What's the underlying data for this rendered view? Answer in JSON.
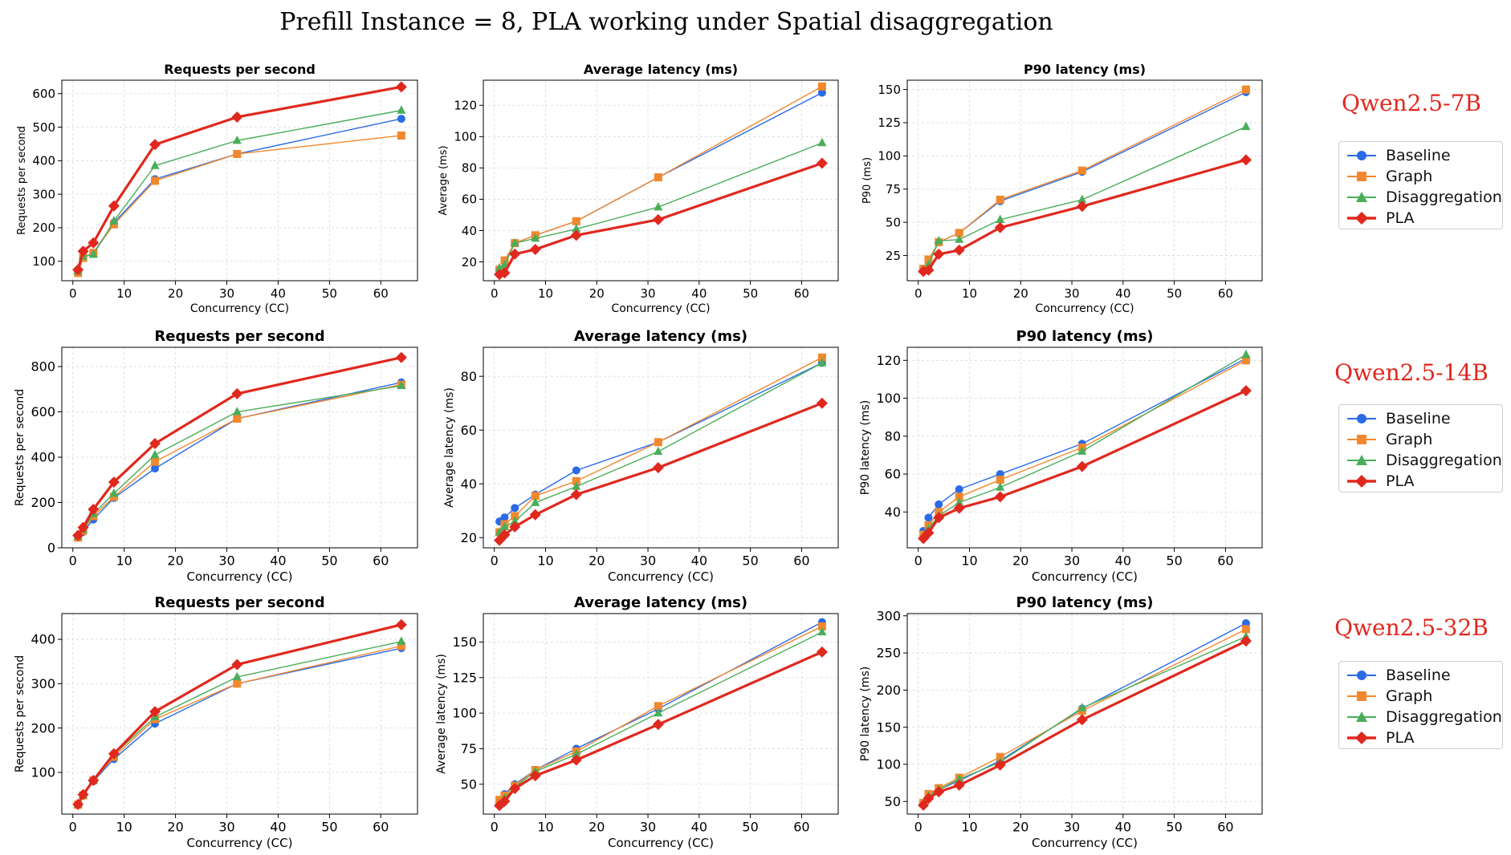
{
  "figure_title": "Prefill Instance = 8, PLA working under Spatial disaggregation",
  "colors": {
    "Baseline": "#2a6be6",
    "Graph": "#f2882e",
    "Disaggregation": "#4aad5a",
    "PLA": "#e0281e"
  },
  "legend": [
    "Baseline",
    "Graph",
    "Disaggregation",
    "PLA"
  ],
  "rows": [
    {
      "model": "Qwen2.5-7B"
    },
    {
      "model": "Qwen2.5-14B"
    },
    {
      "model": "Qwen2.5-32B"
    }
  ],
  "chart_data": [
    {
      "id": "r0c0",
      "type": "line",
      "title": "Requests per second",
      "xlabel": "Concurrency (CC)",
      "ylabel": "Requests per second",
      "x": [
        1,
        2,
        4,
        8,
        16,
        32,
        64
      ],
      "xlim": [
        -2.15,
        67.15
      ],
      "ylim": [
        42,
        640
      ],
      "xticks": [
        0,
        10,
        20,
        30,
        40,
        50,
        60
      ],
      "yticks": [
        100,
        200,
        300,
        400,
        500,
        600
      ],
      "series": [
        {
          "name": "Baseline",
          "values": [
            65,
            110,
            125,
            215,
            345,
            420,
            525
          ]
        },
        {
          "name": "Graph",
          "values": [
            65,
            110,
            125,
            210,
            340,
            420,
            475
          ]
        },
        {
          "name": "Disaggregation",
          "values": [
            70,
            115,
            120,
            220,
            385,
            460,
            550
          ]
        },
        {
          "name": "PLA",
          "values": [
            75,
            130,
            155,
            265,
            448,
            530,
            620
          ]
        }
      ]
    },
    {
      "id": "r0c1",
      "type": "line",
      "title": "Average latency (ms)",
      "xlabel": "Concurrency (CC)",
      "ylabel": "Average (ms)",
      "x": [
        1,
        2,
        4,
        8,
        16,
        32,
        64
      ],
      "xlim": [
        -2.15,
        67.15
      ],
      "ylim": [
        8,
        136
      ],
      "xticks": [
        0,
        10,
        20,
        30,
        40,
        50,
        60
      ],
      "yticks": [
        20,
        40,
        60,
        80,
        100,
        120
      ],
      "series": [
        {
          "name": "Baseline",
          "values": [
            15,
            20,
            32,
            37,
            46,
            74,
            128
          ]
        },
        {
          "name": "Graph",
          "values": [
            15,
            21,
            32,
            37,
            46,
            74,
            132
          ]
        },
        {
          "name": "Disaggregation",
          "values": [
            16,
            18,
            32,
            35,
            41,
            55,
            96
          ]
        },
        {
          "name": "PLA",
          "values": [
            12,
            13,
            25,
            28,
            37,
            47,
            83
          ]
        }
      ]
    },
    {
      "id": "r0c2",
      "type": "line",
      "title": "P90 latency (ms)",
      "xlabel": "Concurrency (CC)",
      "ylabel": "P90 (ms)",
      "x": [
        1,
        2,
        4,
        8,
        16,
        32,
        64
      ],
      "xlim": [
        -2.15,
        67.15
      ],
      "ylim": [
        6,
        157
      ],
      "xticks": [
        0,
        10,
        20,
        30,
        40,
        50,
        60
      ],
      "yticks": [
        25,
        50,
        75,
        100,
        125,
        150
      ],
      "series": [
        {
          "name": "Baseline",
          "values": [
            15,
            20,
            35,
            42,
            66,
            88,
            148
          ]
        },
        {
          "name": "Graph",
          "values": [
            15,
            22,
            35,
            42,
            67,
            89,
            150
          ]
        },
        {
          "name": "Disaggregation",
          "values": [
            14,
            18,
            36,
            37,
            52,
            67,
            122
          ]
        },
        {
          "name": "PLA",
          "values": [
            13,
            14,
            26,
            29,
            46,
            62,
            97
          ]
        }
      ]
    },
    {
      "id": "r1c0",
      "type": "line",
      "title": "Requests per second",
      "xlabel": "Concurrency (CC)",
      "ylabel": "Requests per second",
      "x": [
        1,
        2,
        4,
        8,
        16,
        32,
        64
      ],
      "xlim": [
        -2.15,
        67.15
      ],
      "ylim": [
        0,
        885
      ],
      "xticks": [
        0,
        10,
        20,
        30,
        40,
        50,
        60
      ],
      "yticks": [
        0,
        200,
        400,
        600,
        800
      ],
      "series": [
        {
          "name": "Baseline",
          "values": [
            45,
            70,
            125,
            220,
            350,
            570,
            730
          ]
        },
        {
          "name": "Graph",
          "values": [
            45,
            75,
            140,
            225,
            380,
            570,
            720
          ]
        },
        {
          "name": "Disaggregation",
          "values": [
            50,
            80,
            150,
            240,
            410,
            600,
            715
          ]
        },
        {
          "name": "PLA",
          "values": [
            55,
            90,
            170,
            290,
            460,
            680,
            840
          ]
        }
      ]
    },
    {
      "id": "r1c1",
      "type": "line",
      "title": "Average latency (ms)",
      "xlabel": "Concurrency (CC)",
      "ylabel": "Average latency (ms)",
      "x": [
        1,
        2,
        4,
        8,
        16,
        32,
        64
      ],
      "xlim": [
        -2.15,
        67.15
      ],
      "ylim": [
        16.2,
        90.8
      ],
      "xticks": [
        0,
        10,
        20,
        30,
        40,
        50,
        60
      ],
      "yticks": [
        20,
        40,
        60,
        80
      ],
      "series": [
        {
          "name": "Baseline",
          "values": [
            26,
            27.5,
            31,
            36,
            45,
            55.5,
            85
          ]
        },
        {
          "name": "Graph",
          "values": [
            22,
            25,
            28,
            35.5,
            41,
            55.5,
            87
          ]
        },
        {
          "name": "Disaggregation",
          "values": [
            22,
            24,
            26,
            33,
            39,
            52,
            85
          ]
        },
        {
          "name": "PLA",
          "values": [
            19,
            21,
            24,
            28.5,
            36,
            46,
            70
          ]
        }
      ]
    },
    {
      "id": "r1c2",
      "type": "line",
      "title": "P90 latency (ms)",
      "xlabel": "Concurrency (CC)",
      "ylabel": "P90 latency (ms)",
      "x": [
        1,
        2,
        4,
        8,
        16,
        32,
        64
      ],
      "xlim": [
        -2.15,
        67.15
      ],
      "ylim": [
        21.1,
        126.9
      ],
      "xticks": [
        0,
        10,
        20,
        30,
        40,
        50,
        60
      ],
      "yticks": [
        40,
        60,
        80,
        100,
        120
      ],
      "series": [
        {
          "name": "Baseline",
          "values": [
            30,
            37,
            44,
            52,
            60,
            76,
            121
          ]
        },
        {
          "name": "Graph",
          "values": [
            28,
            33,
            40,
            48,
            57,
            74,
            120
          ]
        },
        {
          "name": "Disaggregation",
          "values": [
            27,
            31,
            38,
            45,
            53,
            72,
            123
          ]
        },
        {
          "name": "PLA",
          "values": [
            26,
            29,
            37,
            42,
            48,
            64,
            104
          ]
        }
      ]
    },
    {
      "id": "r2c0",
      "type": "line",
      "title": "Requests per second",
      "xlabel": "Concurrency (CC)",
      "ylabel": "Requests per second",
      "x": [
        1,
        2,
        4,
        8,
        16,
        32,
        64
      ],
      "xlim": [
        -2.15,
        67.15
      ],
      "ylim": [
        6,
        458
      ],
      "xticks": [
        0,
        10,
        20,
        30,
        40,
        50,
        60
      ],
      "yticks": [
        100,
        200,
        300,
        400
      ],
      "series": [
        {
          "name": "Baseline",
          "values": [
            27,
            48,
            80,
            130,
            210,
            300,
            380
          ]
        },
        {
          "name": "Graph",
          "values": [
            27,
            48,
            82,
            135,
            220,
            300,
            385
          ]
        },
        {
          "name": "Disaggregation",
          "values": [
            28,
            49,
            82,
            140,
            225,
            315,
            395
          ]
        },
        {
          "name": "PLA",
          "values": [
            28,
            50,
            82,
            142,
            237,
            343,
            433
          ]
        }
      ]
    },
    {
      "id": "r2c1",
      "type": "line",
      "title": "Average latency (ms)",
      "xlabel": "Concurrency (CC)",
      "ylabel": "Average latency (ms)",
      "x": [
        1,
        2,
        4,
        8,
        16,
        32,
        64
      ],
      "xlim": [
        -2.15,
        67.15
      ],
      "ylim": [
        29,
        170
      ],
      "xticks": [
        0,
        10,
        20,
        30,
        40,
        50,
        60
      ],
      "yticks": [
        50,
        75,
        100,
        125,
        150
      ],
      "series": [
        {
          "name": "Baseline",
          "values": [
            37,
            43,
            50,
            60,
            75,
            103,
            164
          ]
        },
        {
          "name": "Graph",
          "values": [
            39,
            42,
            49,
            60,
            73,
            105,
            161
          ]
        },
        {
          "name": "Disaggregation",
          "values": [
            36,
            40,
            48,
            59,
            71,
            100,
            157
          ]
        },
        {
          "name": "PLA",
          "values": [
            35,
            38,
            47,
            56,
            67,
            92,
            143
          ]
        }
      ]
    },
    {
      "id": "r2c2",
      "type": "line",
      "title": "P90 latency (ms)",
      "xlabel": "Concurrency (CC)",
      "ylabel": "P90 latency (ms)",
      "x": [
        1,
        2,
        4,
        8,
        16,
        32,
        64
      ],
      "xlim": [
        -2.15,
        67.15
      ],
      "ylim": [
        33,
        303
      ],
      "xticks": [
        0,
        10,
        20,
        30,
        40,
        50,
        60
      ],
      "yticks": [
        50,
        100,
        150,
        200,
        250,
        300
      ],
      "series": [
        {
          "name": "Baseline",
          "values": [
            48,
            58,
            66,
            78,
            105,
            175,
            290
          ]
        },
        {
          "name": "Graph",
          "values": [
            48,
            60,
            68,
            82,
            110,
            172,
            282
          ]
        },
        {
          "name": "Disaggregation",
          "values": [
            47,
            57,
            66,
            80,
            103,
            176,
            272
          ]
        },
        {
          "name": "PLA",
          "values": [
            45,
            54,
            63,
            72,
            99,
            160,
            266
          ]
        }
      ]
    }
  ]
}
